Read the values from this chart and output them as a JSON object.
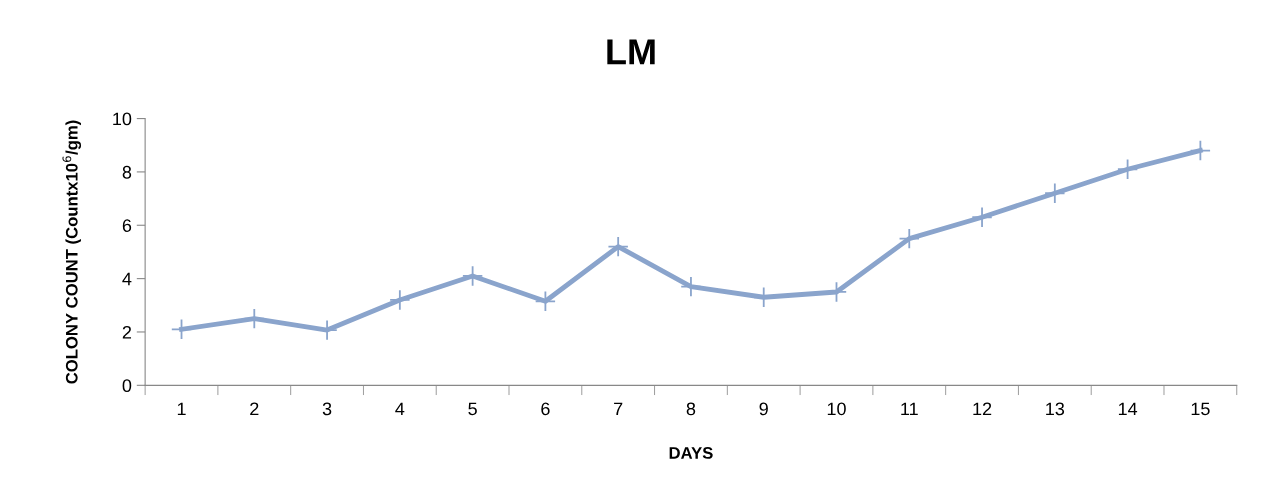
{
  "chart_data": {
    "type": "line",
    "title": "LM",
    "xlabel": "DAYS",
    "ylabel": "COLONY COUNT (Countx10$^{6}$/gm)",
    "categories": [
      "1",
      "2",
      "3",
      "4",
      "5",
      "6",
      "7",
      "8",
      "9",
      "10",
      "11",
      "12",
      "13",
      "14",
      "15"
    ],
    "series": [
      {
        "color": "#8aa4cc",
        "values": [
          2.1,
          2.5,
          2.07,
          3.2,
          4.1,
          3.15,
          5.2,
          3.7,
          3.3,
          3.5,
          5.5,
          6.3,
          7.2,
          8.1,
          8.8
        ]
      }
    ],
    "ylim": [
      0,
      10
    ],
    "yticks": [
      0,
      2,
      4,
      6,
      8,
      10
    ],
    "marker": "cross",
    "line_style": "solid",
    "grid": false,
    "legend": false
  }
}
